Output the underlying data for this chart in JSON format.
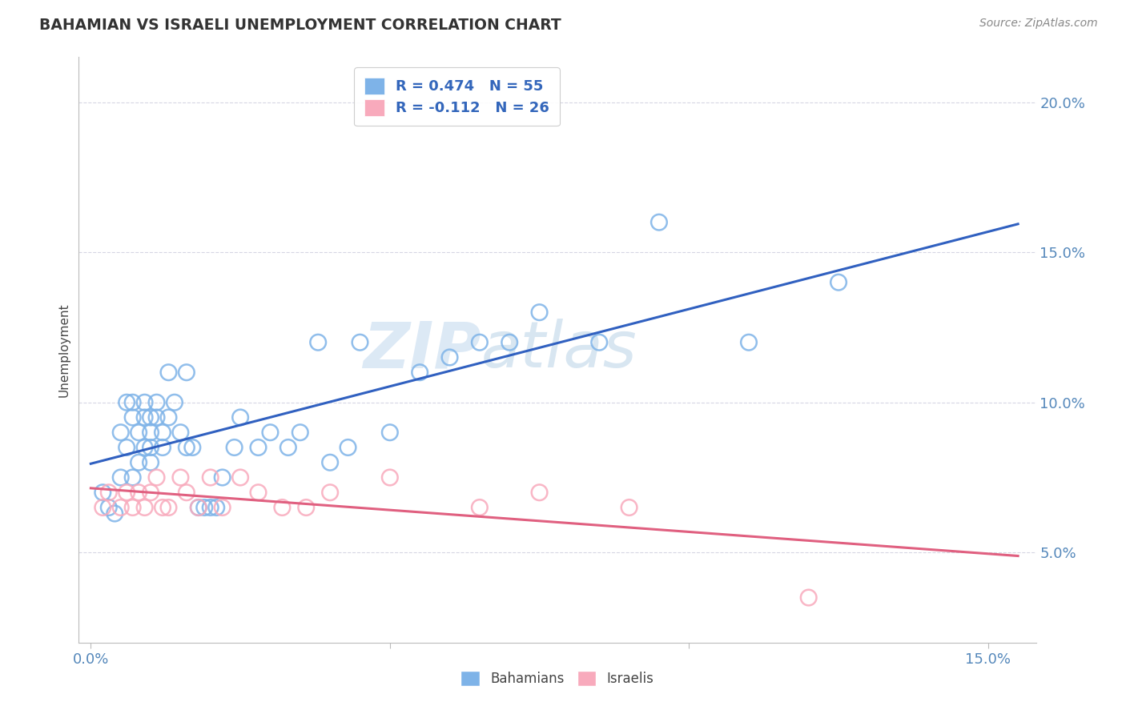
{
  "title": "BAHAMIAN VS ISRAELI UNEMPLOYMENT CORRELATION CHART",
  "source": "Source: ZipAtlas.com",
  "xlim": [
    -0.002,
    0.158
  ],
  "ylim": [
    0.02,
    0.215
  ],
  "yticks": [
    0.05,
    0.1,
    0.15,
    0.2
  ],
  "ytick_labels": [
    "5.0%",
    "10.0%",
    "15.0%",
    "20.0%"
  ],
  "xticks": [
    0.0,
    0.05,
    0.1,
    0.15
  ],
  "xtick_labels": [
    "0.0%",
    "",
    "",
    "15.0%"
  ],
  "legend1_label": "R = 0.474   N = 55",
  "legend2_label": "R = -0.112   N = 26",
  "blue_scatter_color": "#7EB3E8",
  "blue_scatter_edge": "#5590CC",
  "pink_scatter_color": "#F8AABC",
  "pink_scatter_edge": "#E87090",
  "blue_line_color": "#3060C0",
  "pink_line_color": "#E06080",
  "tick_label_color": "#5588BB",
  "ylabel_color": "#444444",
  "title_color": "#333333",
  "source_color": "#888888",
  "watermark_color": "#B8D0EE",
  "grid_color": "#CCCCDD",
  "bahamian_x": [
    0.002,
    0.003,
    0.004,
    0.005,
    0.005,
    0.006,
    0.006,
    0.007,
    0.007,
    0.007,
    0.008,
    0.008,
    0.009,
    0.009,
    0.009,
    0.01,
    0.01,
    0.01,
    0.01,
    0.011,
    0.011,
    0.012,
    0.012,
    0.013,
    0.013,
    0.014,
    0.015,
    0.016,
    0.016,
    0.017,
    0.018,
    0.019,
    0.02,
    0.021,
    0.022,
    0.024,
    0.025,
    0.028,
    0.03,
    0.033,
    0.035,
    0.038,
    0.04,
    0.043,
    0.045,
    0.05,
    0.055,
    0.06,
    0.065,
    0.07,
    0.075,
    0.085,
    0.095,
    0.11,
    0.125
  ],
  "bahamian_y": [
    0.07,
    0.065,
    0.063,
    0.075,
    0.09,
    0.085,
    0.1,
    0.075,
    0.095,
    0.1,
    0.08,
    0.09,
    0.085,
    0.095,
    0.1,
    0.09,
    0.095,
    0.08,
    0.085,
    0.095,
    0.1,
    0.085,
    0.09,
    0.11,
    0.095,
    0.1,
    0.09,
    0.085,
    0.11,
    0.085,
    0.065,
    0.065,
    0.065,
    0.065,
    0.075,
    0.085,
    0.095,
    0.085,
    0.09,
    0.085,
    0.09,
    0.12,
    0.08,
    0.085,
    0.12,
    0.09,
    0.11,
    0.115,
    0.12,
    0.12,
    0.13,
    0.12,
    0.16,
    0.12,
    0.14
  ],
  "israeli_x": [
    0.002,
    0.003,
    0.005,
    0.006,
    0.007,
    0.008,
    0.009,
    0.01,
    0.011,
    0.012,
    0.013,
    0.015,
    0.016,
    0.018,
    0.02,
    0.022,
    0.025,
    0.028,
    0.032,
    0.036,
    0.04,
    0.05,
    0.065,
    0.075,
    0.09,
    0.12
  ],
  "israeli_y": [
    0.065,
    0.07,
    0.065,
    0.07,
    0.065,
    0.07,
    0.065,
    0.07,
    0.075,
    0.065,
    0.065,
    0.075,
    0.07,
    0.065,
    0.075,
    0.065,
    0.075,
    0.07,
    0.065,
    0.065,
    0.07,
    0.075,
    0.065,
    0.07,
    0.065,
    0.035
  ]
}
